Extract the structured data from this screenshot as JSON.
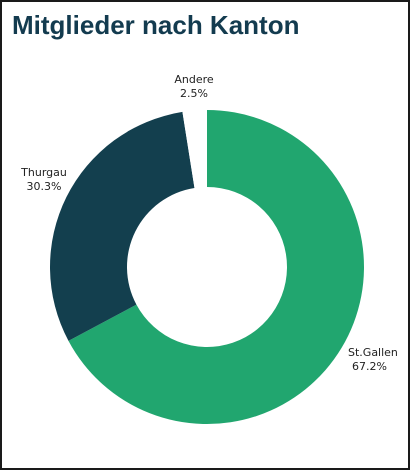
{
  "chart_data": {
    "type": "pie",
    "title": "Mitglieder nach Kanton",
    "donut": true,
    "slices": [
      {
        "label": "St.Gallen",
        "value": 67.2,
        "value_label": "67.2%",
        "color": "#21a66f"
      },
      {
        "label": "Thurgau",
        "value": 30.3,
        "value_label": "30.3%",
        "color": "#133f4e"
      },
      {
        "label": "Andere",
        "value": 2.5,
        "value_label": "2.5%",
        "color": "#ffffff"
      }
    ]
  }
}
